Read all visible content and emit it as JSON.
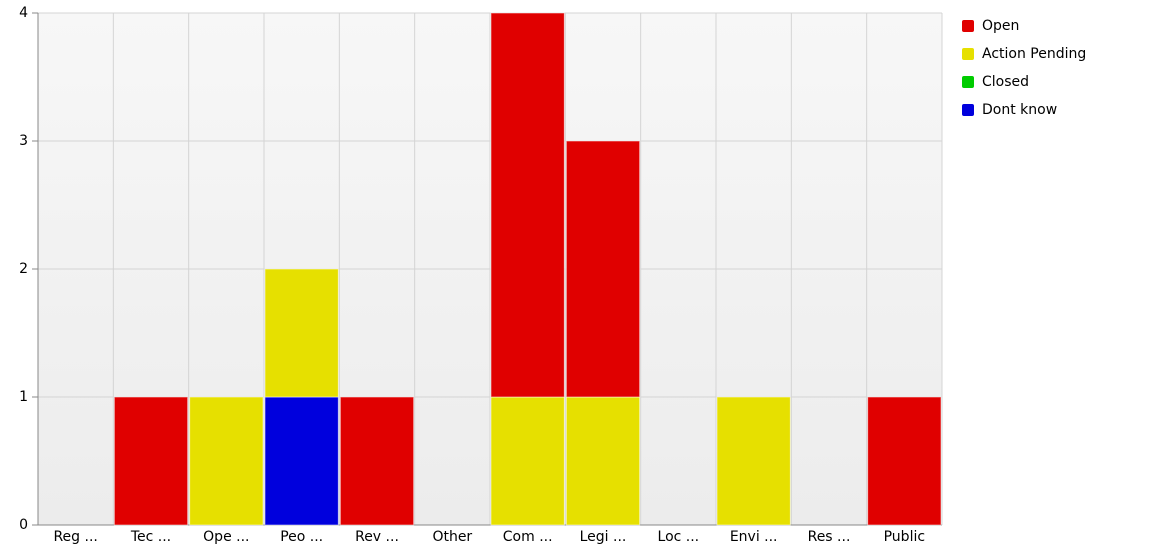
{
  "chart_data": {
    "type": "bar",
    "stacked": true,
    "categories": [
      "Reg ...",
      "Tec ...",
      "Ope ...",
      "Peo ...",
      "Rev ...",
      "Other",
      "Com ...",
      "Legi ...",
      "Loc ...",
      "Envi ...",
      "Res ...",
      "Public"
    ],
    "series": [
      {
        "name": "Open",
        "color": "#e00000",
        "values": [
          0,
          1,
          0,
          0,
          1,
          0,
          3,
          2,
          0,
          0,
          0,
          1
        ]
      },
      {
        "name": "Action Pending",
        "color": "#e6e000",
        "values": [
          0,
          0,
          1,
          1,
          0,
          0,
          1,
          1,
          0,
          1,
          0,
          0
        ]
      },
      {
        "name": "Closed",
        "color": "#00cc00",
        "values": [
          0,
          0,
          0,
          0,
          0,
          0,
          0,
          0,
          0,
          0,
          0,
          0
        ]
      },
      {
        "name": "Dont know",
        "color": "#0000dd",
        "values": [
          0,
          0,
          0,
          1,
          0,
          0,
          0,
          0,
          0,
          0,
          0,
          0
        ]
      }
    ],
    "ylim": [
      0,
      4
    ],
    "yticks": [
      0,
      1,
      2,
      3,
      4
    ],
    "grid": true,
    "legend": "right"
  }
}
